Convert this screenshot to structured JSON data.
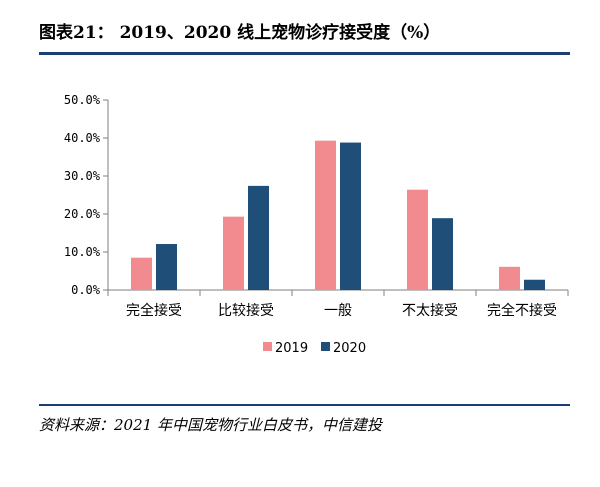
{
  "header": {
    "title": "图表21：   2019、2020 线上宠物诊疗接受度（%）"
  },
  "footer": {
    "source": "资料来源：2021 年中国宠物行业白皮书，中信建投"
  },
  "colors": {
    "rule": "#1a3f73",
    "series_2019": "#f28b8f",
    "series_2020": "#1f4e79",
    "axis": "#7f7f7f"
  },
  "chart_data": {
    "type": "bar",
    "categories": [
      "完全接受",
      "比较接受",
      "一般",
      "不太接受",
      "完全不接受"
    ],
    "series": [
      {
        "name": "2019",
        "values": [
          8.5,
          19.3,
          39.3,
          26.4,
          6.1
        ]
      },
      {
        "name": "2020",
        "values": [
          12.1,
          27.4,
          38.8,
          18.9,
          2.7
        ]
      }
    ],
    "yticks": [
      "0.0%",
      "10.0%",
      "20.0%",
      "30.0%",
      "40.0%",
      "50.0%"
    ],
    "ylim": [
      0,
      50
    ],
    "grid": false,
    "legend": "bottom-center"
  }
}
